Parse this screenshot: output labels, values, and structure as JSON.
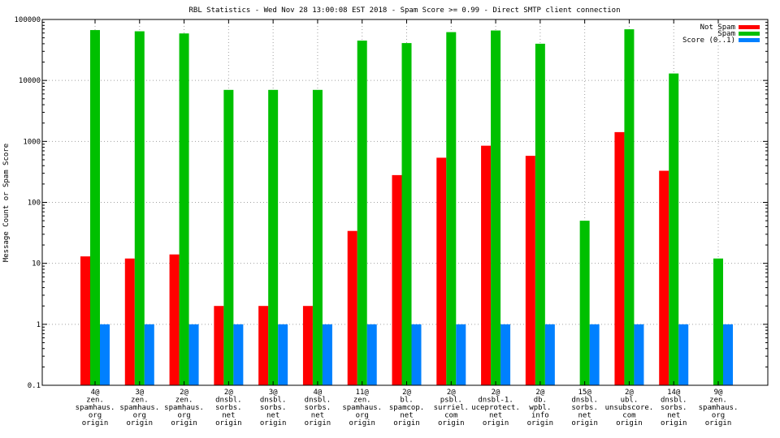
{
  "chart_data": {
    "type": "bar",
    "title": "RBL Statistics - Wed Nov 28 13:00:08 EST 2018 - Spam Score >= 0.99 - Direct SMTP client connection",
    "ylabel": "Message Count or Spam Score",
    "xlabel": "",
    "yscale": "log",
    "ylim": [
      0.1,
      100000
    ],
    "yticks": [
      "0.1",
      "1",
      "10",
      "100",
      "1000",
      "10000",
      "100000"
    ],
    "grid": true,
    "legend_position": "top-right",
    "categories": [
      [
        "4@",
        "zen.",
        "spamhaus.",
        "org",
        "origin"
      ],
      [
        "3@",
        "zen.",
        "spamhaus.",
        "org",
        "origin"
      ],
      [
        "2@",
        "zen.",
        "spamhaus.",
        "org",
        "origin"
      ],
      [
        "2@",
        "dnsbl.",
        "sorbs.",
        "net",
        "origin"
      ],
      [
        "3@",
        "dnsbl.",
        "sorbs.",
        "net",
        "origin"
      ],
      [
        "4@",
        "dnsbl.",
        "sorbs.",
        "net",
        "origin"
      ],
      [
        "11@",
        "zen.",
        "spamhaus.",
        "org",
        "origin"
      ],
      [
        "2@",
        "bl.",
        "spamcop.",
        "net",
        "origin"
      ],
      [
        "2@",
        "psbl.",
        "surriel.",
        "com",
        "origin"
      ],
      [
        "2@",
        "dnsbl-1.",
        "uceprotect.",
        "net",
        "origin"
      ],
      [
        "2@",
        "db.",
        "wpbl.",
        "info",
        "origin"
      ],
      [
        "15@",
        "dnsbl.",
        "sorbs.",
        "net",
        "origin"
      ],
      [
        "2@",
        "ubl.",
        "unsubscore.",
        "com",
        "origin"
      ],
      [
        "14@",
        "dnsbl.",
        "sorbs.",
        "net",
        "origin"
      ],
      [
        "9@",
        "zen.",
        "spamhaus.",
        "org",
        "origin"
      ]
    ],
    "series": [
      {
        "name": "Not Spam",
        "color": "#ff0000",
        "values": [
          13,
          12,
          14,
          2,
          2,
          2,
          34,
          280,
          540,
          850,
          580,
          null,
          1420,
          330,
          null
        ]
      },
      {
        "name": "Spam",
        "color": "#00c000",
        "values": [
          67000,
          64000,
          59000,
          7000,
          7000,
          7000,
          45000,
          41000,
          62000,
          66000,
          40000,
          50,
          69000,
          13000,
          12
        ]
      },
      {
        "name": "Score (0..1)",
        "color": "#0080ff",
        "values": [
          1,
          1,
          1,
          1,
          1,
          1,
          1,
          1,
          1,
          1,
          1,
          1,
          1,
          1,
          1
        ]
      }
    ]
  }
}
